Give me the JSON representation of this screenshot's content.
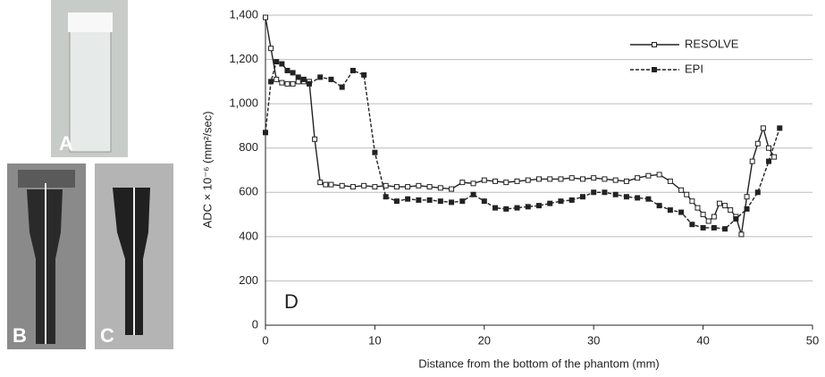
{
  "photo_labels": [
    "A",
    "B",
    "C"
  ],
  "chart_data": {
    "type": "line",
    "panel_label": "D",
    "xlabel": "Distance from the bottom of the phantom (mm)",
    "ylabel": "ADC × 10⁻⁶ (mm²/sec)",
    "xlim": [
      0,
      50
    ],
    "xticks": [
      0,
      10,
      20,
      30,
      40,
      50
    ],
    "ylim": [
      0,
      1400
    ],
    "yticks": [
      0,
      200,
      400,
      600,
      800,
      {
        "value": 1000,
        "label": "1,000"
      },
      {
        "value": 1200,
        "label": "1,200"
      },
      {
        "value": 1400,
        "label": "1,400"
      }
    ],
    "grid": true,
    "legend": "upper right",
    "series": [
      {
        "name": "RESOLVE",
        "color": "#222222",
        "marker": "open-square",
        "dashed": false,
        "x": [
          0,
          0.5,
          1,
          1.5,
          2,
          2.5,
          3,
          3.5,
          4,
          4.5,
          5,
          5.5,
          6,
          7,
          8,
          9,
          10,
          11,
          12,
          13,
          14,
          15,
          16,
          17,
          18,
          19,
          20,
          21,
          22,
          23,
          24,
          25,
          26,
          27,
          28,
          29,
          30,
          31,
          32,
          33,
          34,
          35,
          36,
          37,
          38,
          38.5,
          39,
          39.5,
          40,
          40.5,
          41,
          41.5,
          42,
          42.5,
          43,
          43.5,
          44,
          44.5,
          45,
          45.5,
          46,
          46.5
        ],
        "values": [
          1390,
          1250,
          1110,
          1095,
          1090,
          1090,
          1100,
          1100,
          1100,
          840,
          645,
          635,
          635,
          630,
          625,
          630,
          625,
          630,
          625,
          625,
          630,
          625,
          620,
          615,
          645,
          640,
          655,
          650,
          645,
          650,
          655,
          660,
          660,
          660,
          665,
          660,
          665,
          660,
          655,
          650,
          665,
          675,
          680,
          650,
          610,
          590,
          560,
          530,
          500,
          470,
          490,
          550,
          540,
          520,
          490,
          410,
          580,
          740,
          820,
          890,
          800,
          760
        ]
      },
      {
        "name": "EPI",
        "color": "#222222",
        "marker": "filled-square",
        "dashed": true,
        "x": [
          0,
          0.5,
          1,
          1.5,
          2,
          2.5,
          3,
          3.5,
          4,
          5,
          6,
          7,
          8,
          9,
          10,
          11,
          12,
          13,
          14,
          15,
          16,
          17,
          18,
          19,
          20,
          21,
          22,
          23,
          24,
          25,
          26,
          27,
          28,
          29,
          30,
          31,
          32,
          33,
          34,
          35,
          36,
          37,
          38,
          39,
          40,
          41,
          42,
          43,
          44,
          45,
          46,
          47
        ],
        "values": [
          870,
          1100,
          1190,
          1180,
          1150,
          1140,
          1120,
          1110,
          1090,
          1120,
          1110,
          1075,
          1150,
          1130,
          780,
          580,
          560,
          570,
          565,
          565,
          560,
          555,
          560,
          590,
          560,
          530,
          525,
          530,
          535,
          540,
          550,
          560,
          565,
          580,
          600,
          600,
          590,
          580,
          575,
          570,
          540,
          520,
          510,
          455,
          440,
          440,
          435,
          480,
          525,
          600,
          740,
          890
        ]
      }
    ]
  }
}
